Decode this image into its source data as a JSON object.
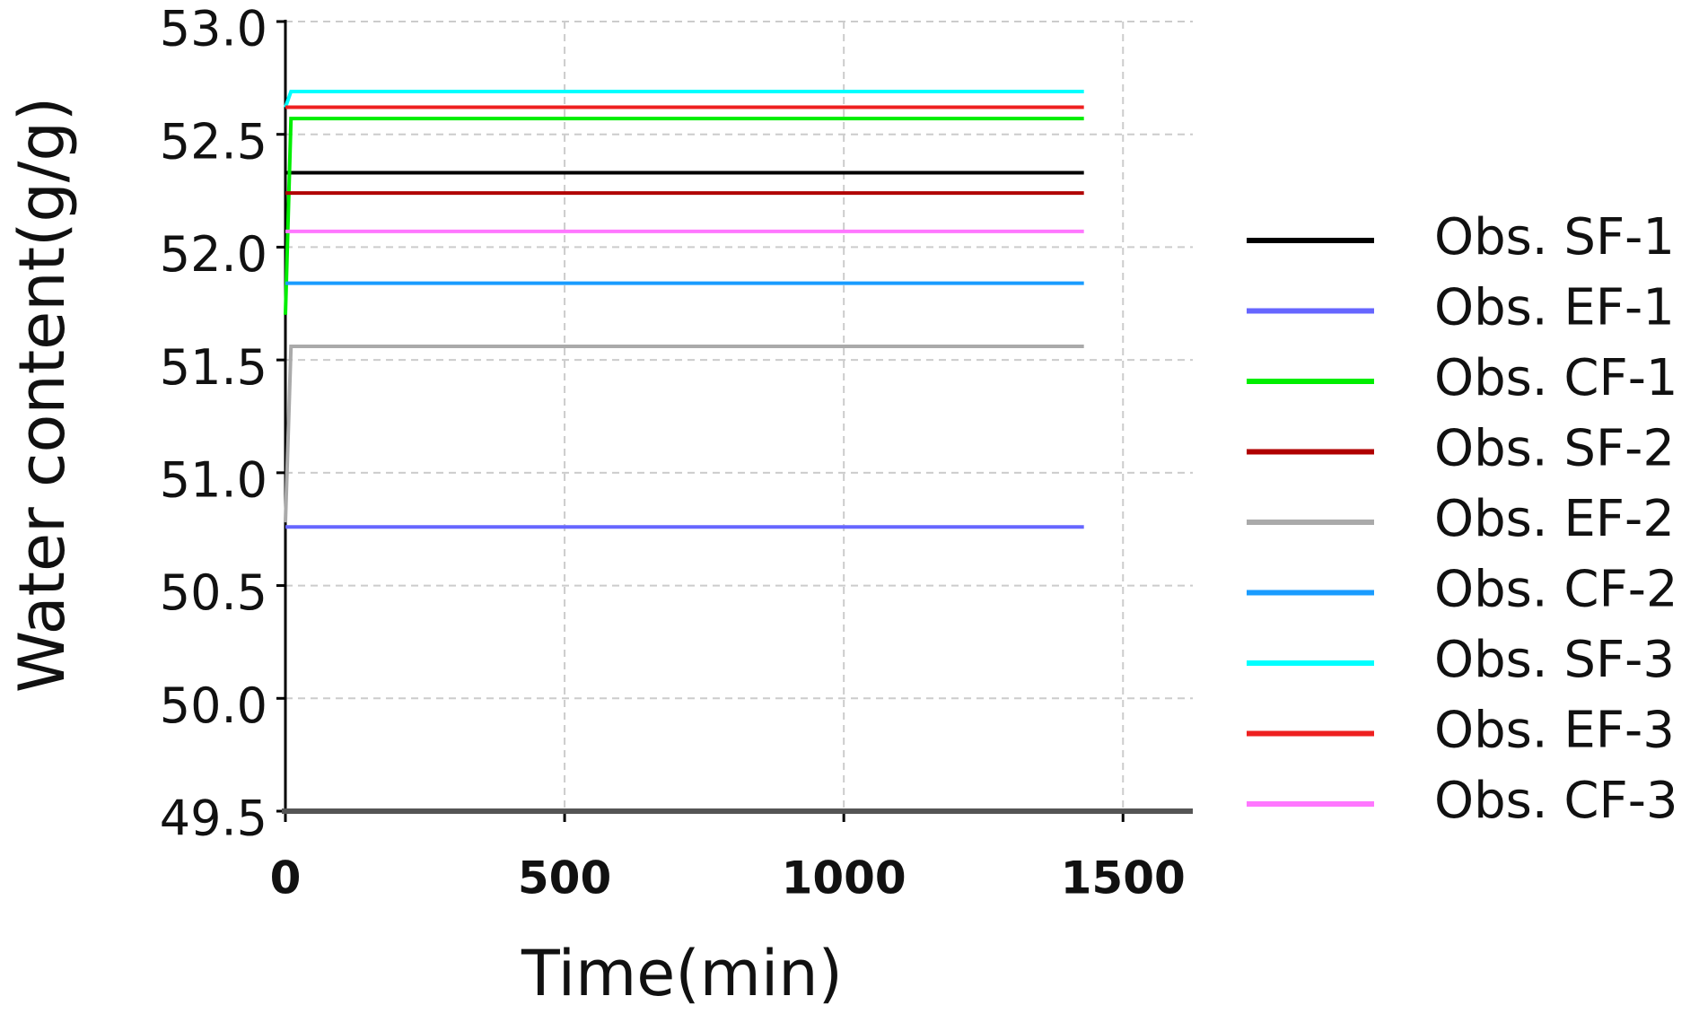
{
  "chart_data": {
    "type": "line",
    "x_label": "Time(min)",
    "y_label": "Water content(g/g)",
    "x": [
      0,
      10,
      1430
    ],
    "series": [
      {
        "name": "Obs. SF-1",
        "color": "#000000",
        "values": [
          52.33,
          52.33,
          52.33
        ]
      },
      {
        "name": "Obs. EF-1",
        "color": "#6666ff",
        "values": [
          50.76,
          50.76,
          50.76
        ]
      },
      {
        "name": "Obs. CF-1",
        "color": "#00ee00",
        "values": [
          51.7,
          52.57,
          52.57
        ]
      },
      {
        "name": "Obs. SF-2",
        "color": "#b00000",
        "values": [
          52.24,
          52.24,
          52.24
        ]
      },
      {
        "name": "Obs. EF-2",
        "color": "#aaaaaa",
        "values": [
          50.78,
          51.56,
          51.56
        ]
      },
      {
        "name": "Obs. CF-2",
        "color": "#1a9cff",
        "values": [
          51.84,
          51.84,
          51.84
        ]
      },
      {
        "name": "Obs. SF-3",
        "color": "#00ffff",
        "values": [
          52.62,
          52.69,
          52.69
        ]
      },
      {
        "name": "Obs. EF-3",
        "color": "#ee2020",
        "values": [
          52.62,
          52.62,
          52.62
        ]
      },
      {
        "name": "Obs. CF-3",
        "color": "#ff77ff",
        "values": [
          52.07,
          52.07,
          52.07
        ]
      }
    ],
    "xlim": [
      0,
      1625
    ],
    "xticks": [
      0,
      500,
      1000,
      1500
    ],
    "ylim": [
      49.5,
      53.0
    ],
    "yticks": [
      49.5,
      {
        "value": 50,
        "label": "50.0"
      },
      50.5,
      {
        "value": 51,
        "label": "51.0"
      },
      51.5,
      {
        "value": 52,
        "label": "52.0"
      },
      52.5,
      {
        "value": 53,
        "label": "53.0"
      }
    ],
    "grid": true,
    "legend": "right"
  }
}
